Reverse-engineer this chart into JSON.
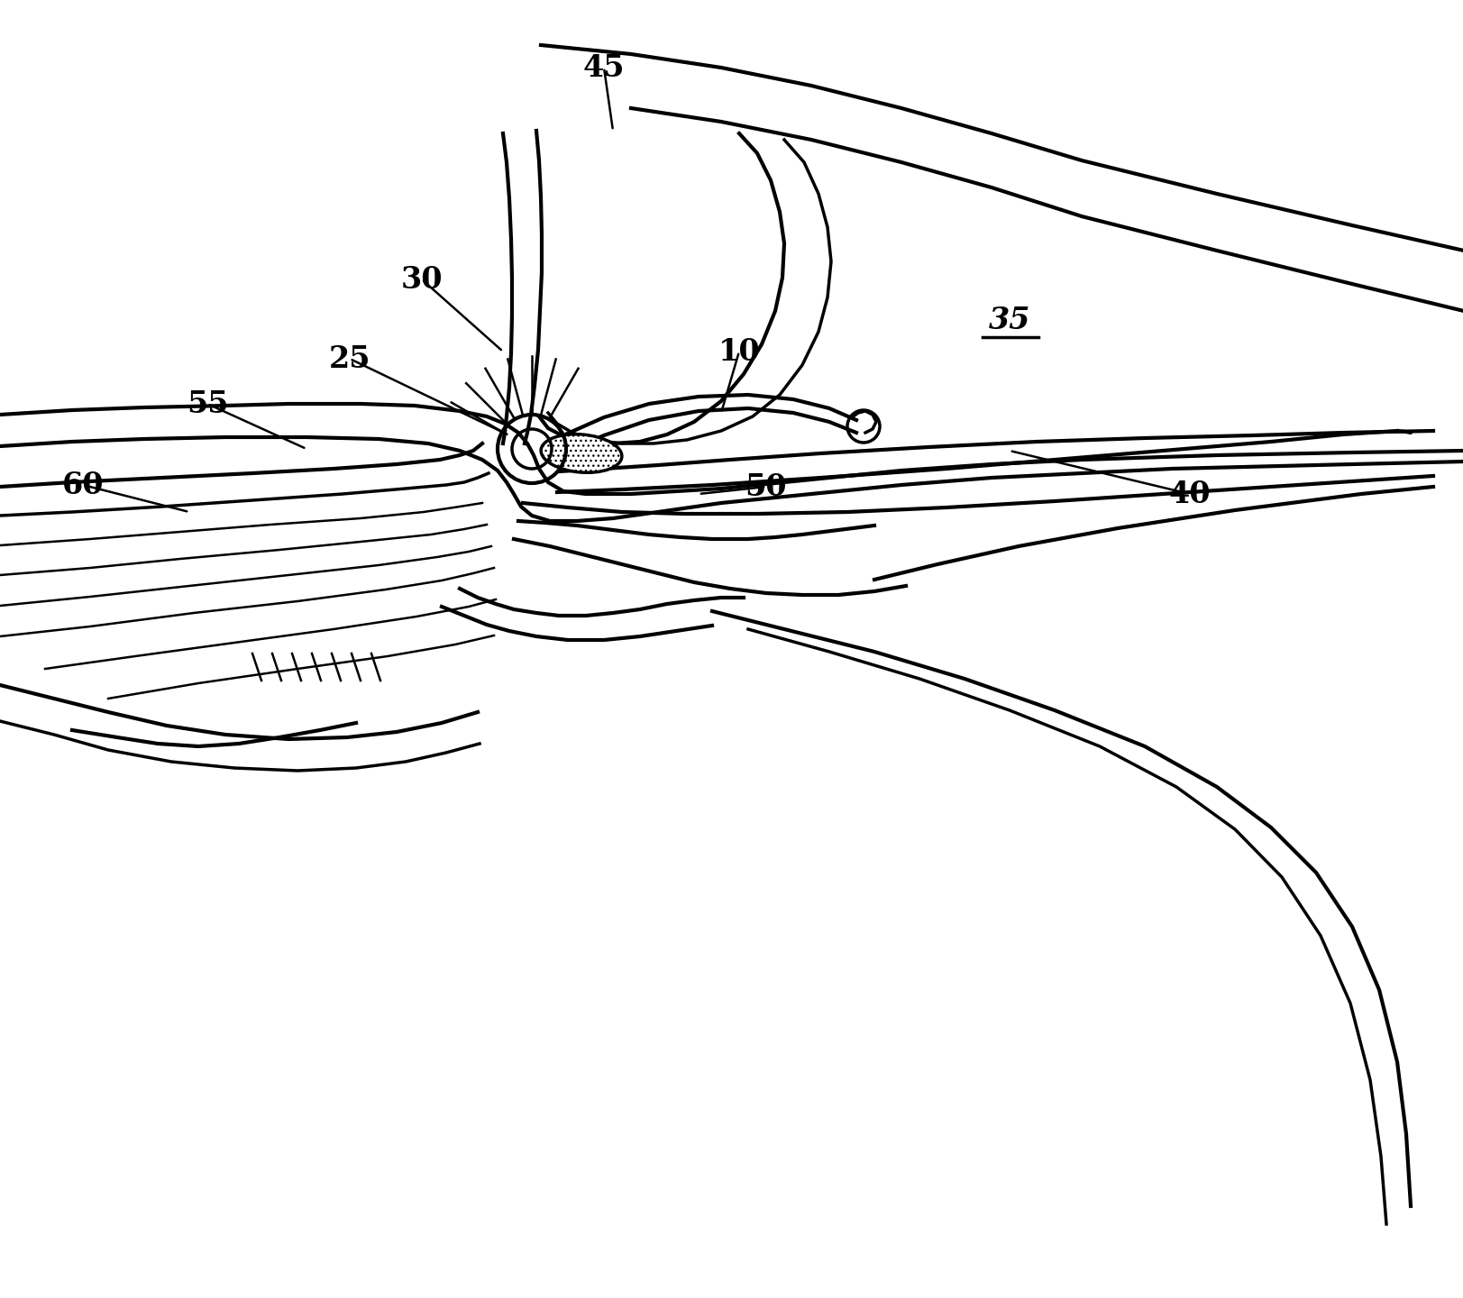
{
  "bg_color": "#ffffff",
  "lw": 2.5,
  "lw_thick": 3.0,
  "lw_thin": 1.8,
  "label_fontsize": 24
}
